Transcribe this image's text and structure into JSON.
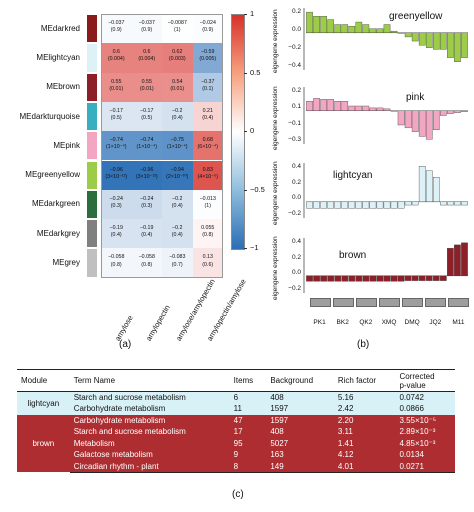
{
  "heatmap": {
    "modules": [
      {
        "name": "MEdarkred",
        "color": "#8b1a1a"
      },
      {
        "name": "MElightcyan",
        "color": "#dcf2f7"
      },
      {
        "name": "MEbrown",
        "color": "#8c1f28"
      },
      {
        "name": "MEdarkturquoise",
        "color": "#36b0be"
      },
      {
        "name": "MEpink",
        "color": "#f3a6c2"
      },
      {
        "name": "MEgreenyellow",
        "color": "#9ccc48"
      },
      {
        "name": "MEdarkgreen",
        "color": "#2d6e3f"
      },
      {
        "name": "MEdarkgrey",
        "color": "#808080"
      },
      {
        "name": "MEgrey",
        "color": "#c0c0c0"
      }
    ],
    "columns": [
      "amylose",
      "amylopectin",
      "amylose/amylopectin",
      "amylopectin/amylose"
    ],
    "cells": [
      [
        [
          "−0.037",
          "(0.9)"
        ],
        [
          "−0.037",
          "(0.9)"
        ],
        [
          "−0.0087",
          "(1)"
        ],
        [
          "−0.024",
          "(0.9)"
        ]
      ],
      [
        [
          "0.6",
          "(0.004)"
        ],
        [
          "0.6",
          "(0.004)"
        ],
        [
          "0.62",
          "(0.003)"
        ],
        [
          "−0.59",
          "(0.005)"
        ]
      ],
      [
        [
          "0.55",
          "(0.01)"
        ],
        [
          "0.55",
          "(0.01)"
        ],
        [
          "0.54",
          "(0.01)"
        ],
        [
          "−0.37",
          "(0.1)"
        ]
      ],
      [
        [
          "−0.17",
          "(0.5)"
        ],
        [
          "−0.17",
          "(0.5)"
        ],
        [
          "−0.2",
          "(0.4)"
        ],
        [
          "0.21",
          "(0.4)"
        ]
      ],
      [
        [
          "−0.74",
          "(1×10⁻⁴)"
        ],
        [
          "−0.74",
          "(1×10⁻⁴)"
        ],
        [
          "−0.75",
          "(1×10⁻⁴)"
        ],
        [
          "0.68",
          "(6×10⁻⁴)"
        ]
      ],
      [
        [
          "−0.96",
          "(3×10⁻¹²)"
        ],
        [
          "−0.96",
          "(3×10⁻¹²)"
        ],
        [
          "−0.94",
          "(2×10⁻¹⁰)"
        ],
        [
          "0.83",
          "(4×10⁻⁶)"
        ]
      ],
      [
        [
          "−0.24",
          "(0.3)"
        ],
        [
          "−0.24",
          "(0.3)"
        ],
        [
          "−0.2",
          "(0.4)"
        ],
        [
          "−0.013",
          "(1)"
        ]
      ],
      [
        [
          "−0.19",
          "(0.4)"
        ],
        [
          "−0.19",
          "(0.4)"
        ],
        [
          "−0.2",
          "(0.4)"
        ],
        [
          "0.055",
          "(0.8)"
        ]
      ],
      [
        [
          "−0.058",
          "(0.8)"
        ],
        [
          "−0.058",
          "(0.8)"
        ],
        [
          "−0.083",
          "(0.7)"
        ],
        [
          "0.13",
          "(0.6)"
        ]
      ]
    ],
    "colorbar_ticks": [
      "1",
      "0.5",
      "0",
      "−0.5",
      "−1"
    ],
    "panel_label": "(a)"
  },
  "chart_data": [
    {
      "type": "bar",
      "gene_module": "greenyellow",
      "color": "#9ccc48",
      "ylabel": "eigengene expression",
      "ytick_labels": [
        "0.2",
        "0.0",
        "−0.2",
        "−0.4"
      ],
      "ylim": [
        -0.45,
        0.3
      ],
      "values": [
        0.25,
        0.2,
        0.2,
        0.16,
        0.1,
        0.1,
        0.08,
        0.13,
        0.1,
        0.05,
        0.05,
        0.1,
        0.02,
        0.0,
        -0.05,
        -0.1,
        -0.15,
        -0.18,
        -0.2,
        -0.2,
        -0.3,
        -0.35,
        -0.3
      ]
    },
    {
      "type": "bar",
      "gene_module": "pink",
      "color": "#f3a6c2",
      "ylabel": "eigengene expression",
      "ytick_labels": [
        "0.2",
        "0.1",
        "−0.1",
        "−0.3"
      ],
      "ylim": [
        -0.35,
        0.25
      ],
      "values": [
        0.1,
        0.13,
        0.12,
        0.12,
        0.1,
        0.1,
        0.05,
        0.05,
        0.05,
        0.03,
        0.03,
        0.02,
        0.0,
        -0.15,
        -0.18,
        -0.22,
        -0.27,
        -0.3,
        -0.2,
        -0.05,
        -0.03,
        -0.02,
        -0.01
      ]
    },
    {
      "type": "bar",
      "gene_module": "lightcyan",
      "color": "#dcf2f7",
      "ylabel": "eigengene expression",
      "ytick_labels": [
        "0.4",
        "0.2",
        "0.0",
        "−0.2"
      ],
      "ylim": [
        -0.25,
        0.6
      ],
      "values": [
        -0.1,
        -0.1,
        -0.1,
        -0.1,
        -0.1,
        -0.1,
        -0.1,
        -0.1,
        -0.1,
        -0.1,
        -0.1,
        -0.1,
        -0.1,
        -0.1,
        -0.05,
        -0.05,
        0.55,
        0.48,
        0.38,
        -0.05,
        -0.05,
        -0.05,
        -0.05
      ]
    },
    {
      "type": "bar",
      "gene_module": "brown",
      "color": "#8c1f28",
      "ylabel": "eigengene expression",
      "ytick_labels": [
        "0.4",
        "0.2",
        "0.0",
        "−0.2"
      ],
      "ylim": [
        -0.25,
        0.55
      ],
      "values": [
        -0.08,
        -0.08,
        -0.08,
        -0.08,
        -0.08,
        -0.08,
        -0.08,
        -0.08,
        -0.08,
        -0.08,
        -0.08,
        -0.08,
        -0.08,
        -0.08,
        -0.07,
        -0.07,
        -0.07,
        -0.07,
        -0.07,
        -0.07,
        0.4,
        0.45,
        0.48
      ]
    }
  ],
  "barpanel": {
    "samples": [
      "PK1",
      "BK2",
      "QK2",
      "XMQ",
      "DMQ",
      "JQ2",
      "M11"
    ],
    "panel_label": "(b)"
  },
  "table": {
    "headers": [
      "Module",
      "Term Name",
      "Items",
      "Background",
      "Rich factor",
      "Corrected\np-value"
    ],
    "groups": [
      {
        "module": "lightcyan",
        "rows": [
          [
            "Starch and sucrose metabolism",
            "6",
            "408",
            "5.16",
            "0.0742"
          ],
          [
            "Carbohydrate metabolism",
            "11",
            "1597",
            "2.42",
            "0.0866"
          ]
        ]
      },
      {
        "module": "brown",
        "rows": [
          [
            "Carbohydrate metabolism",
            "47",
            "1597",
            "2.20",
            "3.55×10⁻⁵"
          ],
          [
            "Starch and sucrose metabolism",
            "17",
            "408",
            "3.11",
            "2.89×10⁻³"
          ],
          [
            "Metabolism",
            "95",
            "5027",
            "1.41",
            "4.85×10⁻³"
          ],
          [
            "Galactose metabolism",
            "9",
            "163",
            "4.12",
            "0.0134"
          ],
          [
            "Circadian rhythm - plant",
            "8",
            "149",
            "4.01",
            "0.0271"
          ]
        ]
      }
    ],
    "panel_label": "(c)"
  }
}
